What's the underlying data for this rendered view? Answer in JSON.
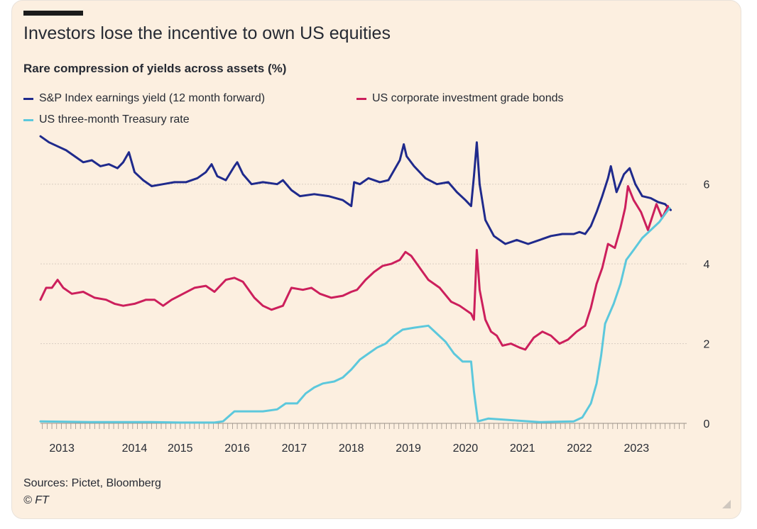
{
  "chart_data": {
    "type": "line",
    "title": "Investors lose the incentive to own US equities",
    "subtitle": "Rare compression of yields across assets (%)",
    "xlabel": "",
    "ylabel": "",
    "xlim": [
      2012.55,
      2023.88
    ],
    "ylim": [
      0,
      7.4
    ],
    "x_ticks": [
      "2013",
      "2014",
      "2015",
      "2016",
      "2017",
      "2018",
      "2019",
      "2020",
      "2021",
      "2022",
      "2023"
    ],
    "y_ticks": [
      "0",
      "2",
      "4",
      "6"
    ],
    "grid": true,
    "legend_position": "top-left",
    "series": [
      {
        "name": "S&P Index earnings yield (12 month forward)",
        "color": "#1f2a8c",
        "points": [
          [
            2012.55,
            7.2
          ],
          [
            2012.7,
            7.05
          ],
          [
            2012.85,
            6.95
          ],
          [
            2013.0,
            6.85
          ],
          [
            2013.15,
            6.7
          ],
          [
            2013.3,
            6.55
          ],
          [
            2013.45,
            6.6
          ],
          [
            2013.6,
            6.45
          ],
          [
            2013.75,
            6.5
          ],
          [
            2013.9,
            6.4
          ],
          [
            2014.0,
            6.55
          ],
          [
            2014.1,
            6.8
          ],
          [
            2014.2,
            6.3
          ],
          [
            2014.35,
            6.1
          ],
          [
            2014.5,
            5.95
          ],
          [
            2014.7,
            6.0
          ],
          [
            2014.9,
            6.05
          ],
          [
            2015.1,
            6.05
          ],
          [
            2015.3,
            6.15
          ],
          [
            2015.45,
            6.3
          ],
          [
            2015.55,
            6.5
          ],
          [
            2015.65,
            6.2
          ],
          [
            2015.8,
            6.1
          ],
          [
            2015.95,
            6.45
          ],
          [
            2016.0,
            6.55
          ],
          [
            2016.1,
            6.25
          ],
          [
            2016.25,
            6.0
          ],
          [
            2016.45,
            6.05
          ],
          [
            2016.7,
            6.0
          ],
          [
            2016.8,
            6.1
          ],
          [
            2016.95,
            5.85
          ],
          [
            2017.1,
            5.7
          ],
          [
            2017.35,
            5.75
          ],
          [
            2017.6,
            5.7
          ],
          [
            2017.85,
            5.6
          ],
          [
            2018.0,
            5.45
          ],
          [
            2018.05,
            6.05
          ],
          [
            2018.15,
            6.0
          ],
          [
            2018.3,
            6.15
          ],
          [
            2018.5,
            6.05
          ],
          [
            2018.65,
            6.1
          ],
          [
            2018.75,
            6.35
          ],
          [
            2018.85,
            6.6
          ],
          [
            2018.92,
            7.0
          ],
          [
            2018.97,
            6.7
          ],
          [
            2019.1,
            6.45
          ],
          [
            2019.3,
            6.15
          ],
          [
            2019.5,
            6.0
          ],
          [
            2019.7,
            6.05
          ],
          [
            2019.85,
            5.8
          ],
          [
            2020.0,
            5.6
          ],
          [
            2020.1,
            5.45
          ],
          [
            2020.15,
            6.2
          ],
          [
            2020.2,
            7.05
          ],
          [
            2020.25,
            6.0
          ],
          [
            2020.35,
            5.1
          ],
          [
            2020.5,
            4.7
          ],
          [
            2020.7,
            4.5
          ],
          [
            2020.9,
            4.6
          ],
          [
            2021.1,
            4.5
          ],
          [
            2021.3,
            4.6
          ],
          [
            2021.5,
            4.7
          ],
          [
            2021.7,
            4.75
          ],
          [
            2021.9,
            4.75
          ],
          [
            2022.0,
            4.8
          ],
          [
            2022.1,
            4.75
          ],
          [
            2022.2,
            4.95
          ],
          [
            2022.3,
            5.3
          ],
          [
            2022.4,
            5.7
          ],
          [
            2022.5,
            6.15
          ],
          [
            2022.55,
            6.45
          ],
          [
            2022.65,
            5.8
          ],
          [
            2022.78,
            6.25
          ],
          [
            2022.88,
            6.4
          ],
          [
            2022.98,
            6.0
          ],
          [
            2023.1,
            5.7
          ],
          [
            2023.25,
            5.65
          ],
          [
            2023.38,
            5.55
          ],
          [
            2023.5,
            5.5
          ],
          [
            2023.6,
            5.35
          ]
        ]
      },
      {
        "name": "US corporate investment grade bonds",
        "color": "#cc1f5c",
        "points": [
          [
            2012.55,
            3.1
          ],
          [
            2012.65,
            3.4
          ],
          [
            2012.75,
            3.4
          ],
          [
            2012.85,
            3.6
          ],
          [
            2012.95,
            3.4
          ],
          [
            2013.1,
            3.25
          ],
          [
            2013.3,
            3.3
          ],
          [
            2013.5,
            3.15
          ],
          [
            2013.7,
            3.1
          ],
          [
            2013.85,
            3.0
          ],
          [
            2014.0,
            2.95
          ],
          [
            2014.2,
            3.0
          ],
          [
            2014.4,
            3.1
          ],
          [
            2014.55,
            3.1
          ],
          [
            2014.7,
            2.95
          ],
          [
            2014.85,
            3.1
          ],
          [
            2015.05,
            3.25
          ],
          [
            2015.25,
            3.4
          ],
          [
            2015.45,
            3.45
          ],
          [
            2015.6,
            3.3
          ],
          [
            2015.8,
            3.6
          ],
          [
            2015.95,
            3.65
          ],
          [
            2016.1,
            3.55
          ],
          [
            2016.3,
            3.15
          ],
          [
            2016.45,
            2.95
          ],
          [
            2016.6,
            2.85
          ],
          [
            2016.8,
            2.95
          ],
          [
            2016.95,
            3.4
          ],
          [
            2017.15,
            3.35
          ],
          [
            2017.3,
            3.4
          ],
          [
            2017.45,
            3.25
          ],
          [
            2017.65,
            3.15
          ],
          [
            2017.85,
            3.2
          ],
          [
            2018.0,
            3.3
          ],
          [
            2018.1,
            3.35
          ],
          [
            2018.25,
            3.6
          ],
          [
            2018.4,
            3.8
          ],
          [
            2018.55,
            3.95
          ],
          [
            2018.7,
            4.0
          ],
          [
            2018.85,
            4.1
          ],
          [
            2018.95,
            4.3
          ],
          [
            2019.05,
            4.2
          ],
          [
            2019.2,
            3.9
          ],
          [
            2019.35,
            3.6
          ],
          [
            2019.55,
            3.4
          ],
          [
            2019.75,
            3.05
          ],
          [
            2019.9,
            2.95
          ],
          [
            2020.0,
            2.85
          ],
          [
            2020.1,
            2.75
          ],
          [
            2020.15,
            2.6
          ],
          [
            2020.2,
            4.35
          ],
          [
            2020.25,
            3.35
          ],
          [
            2020.35,
            2.6
          ],
          [
            2020.45,
            2.3
          ],
          [
            2020.55,
            2.2
          ],
          [
            2020.65,
            1.95
          ],
          [
            2020.8,
            2.0
          ],
          [
            2020.95,
            1.9
          ],
          [
            2021.05,
            1.85
          ],
          [
            2021.2,
            2.15
          ],
          [
            2021.35,
            2.3
          ],
          [
            2021.5,
            2.2
          ],
          [
            2021.65,
            2.0
          ],
          [
            2021.8,
            2.1
          ],
          [
            2021.95,
            2.3
          ],
          [
            2022.1,
            2.45
          ],
          [
            2022.2,
            2.9
          ],
          [
            2022.3,
            3.5
          ],
          [
            2022.4,
            3.9
          ],
          [
            2022.5,
            4.5
          ],
          [
            2022.62,
            4.4
          ],
          [
            2022.72,
            4.9
          ],
          [
            2022.8,
            5.4
          ],
          [
            2022.85,
            5.95
          ],
          [
            2022.95,
            5.6
          ],
          [
            2023.08,
            5.3
          ],
          [
            2023.2,
            4.85
          ],
          [
            2023.35,
            5.5
          ],
          [
            2023.45,
            5.15
          ],
          [
            2023.55,
            5.45
          ]
        ]
      },
      {
        "name": "US three-month Treasury rate",
        "color": "#5cc8dc",
        "points": [
          [
            2012.55,
            0.05
          ],
          [
            2013.0,
            0.04
          ],
          [
            2013.5,
            0.03
          ],
          [
            2014.0,
            0.03
          ],
          [
            2014.5,
            0.03
          ],
          [
            2015.0,
            0.02
          ],
          [
            2015.6,
            0.02
          ],
          [
            2015.75,
            0.05
          ],
          [
            2015.95,
            0.3
          ],
          [
            2016.2,
            0.3
          ],
          [
            2016.45,
            0.3
          ],
          [
            2016.7,
            0.35
          ],
          [
            2016.85,
            0.5
          ],
          [
            2017.05,
            0.5
          ],
          [
            2017.2,
            0.75
          ],
          [
            2017.35,
            0.9
          ],
          [
            2017.5,
            1.0
          ],
          [
            2017.7,
            1.05
          ],
          [
            2017.85,
            1.15
          ],
          [
            2018.0,
            1.35
          ],
          [
            2018.15,
            1.6
          ],
          [
            2018.3,
            1.75
          ],
          [
            2018.45,
            1.9
          ],
          [
            2018.6,
            2.0
          ],
          [
            2018.75,
            2.2
          ],
          [
            2018.9,
            2.35
          ],
          [
            2019.1,
            2.4
          ],
          [
            2019.35,
            2.45
          ],
          [
            2019.5,
            2.25
          ],
          [
            2019.65,
            2.05
          ],
          [
            2019.8,
            1.75
          ],
          [
            2019.95,
            1.55
          ],
          [
            2020.1,
            1.55
          ],
          [
            2020.15,
            0.8
          ],
          [
            2020.22,
            0.05
          ],
          [
            2020.4,
            0.12
          ],
          [
            2020.6,
            0.1
          ],
          [
            2020.8,
            0.08
          ],
          [
            2021.0,
            0.06
          ],
          [
            2021.3,
            0.03
          ],
          [
            2021.6,
            0.04
          ],
          [
            2021.9,
            0.05
          ],
          [
            2022.05,
            0.15
          ],
          [
            2022.2,
            0.5
          ],
          [
            2022.3,
            1.0
          ],
          [
            2022.38,
            1.7
          ],
          [
            2022.45,
            2.5
          ],
          [
            2022.6,
            3.0
          ],
          [
            2022.72,
            3.5
          ],
          [
            2022.82,
            4.1
          ],
          [
            2022.95,
            4.35
          ],
          [
            2023.1,
            4.65
          ],
          [
            2023.25,
            4.85
          ],
          [
            2023.4,
            5.05
          ],
          [
            2023.5,
            5.25
          ],
          [
            2023.58,
            5.4
          ]
        ]
      }
    ]
  },
  "footer": {
    "source": "Sources: Pictet, Bloomberg",
    "credit": "© FT"
  },
  "colors": {
    "background": "#fcefe0",
    "grid": "#d8cdc1",
    "axis": "#9a9189",
    "text": "#262a33"
  },
  "icons": {
    "resize": "resize-corner-icon"
  }
}
